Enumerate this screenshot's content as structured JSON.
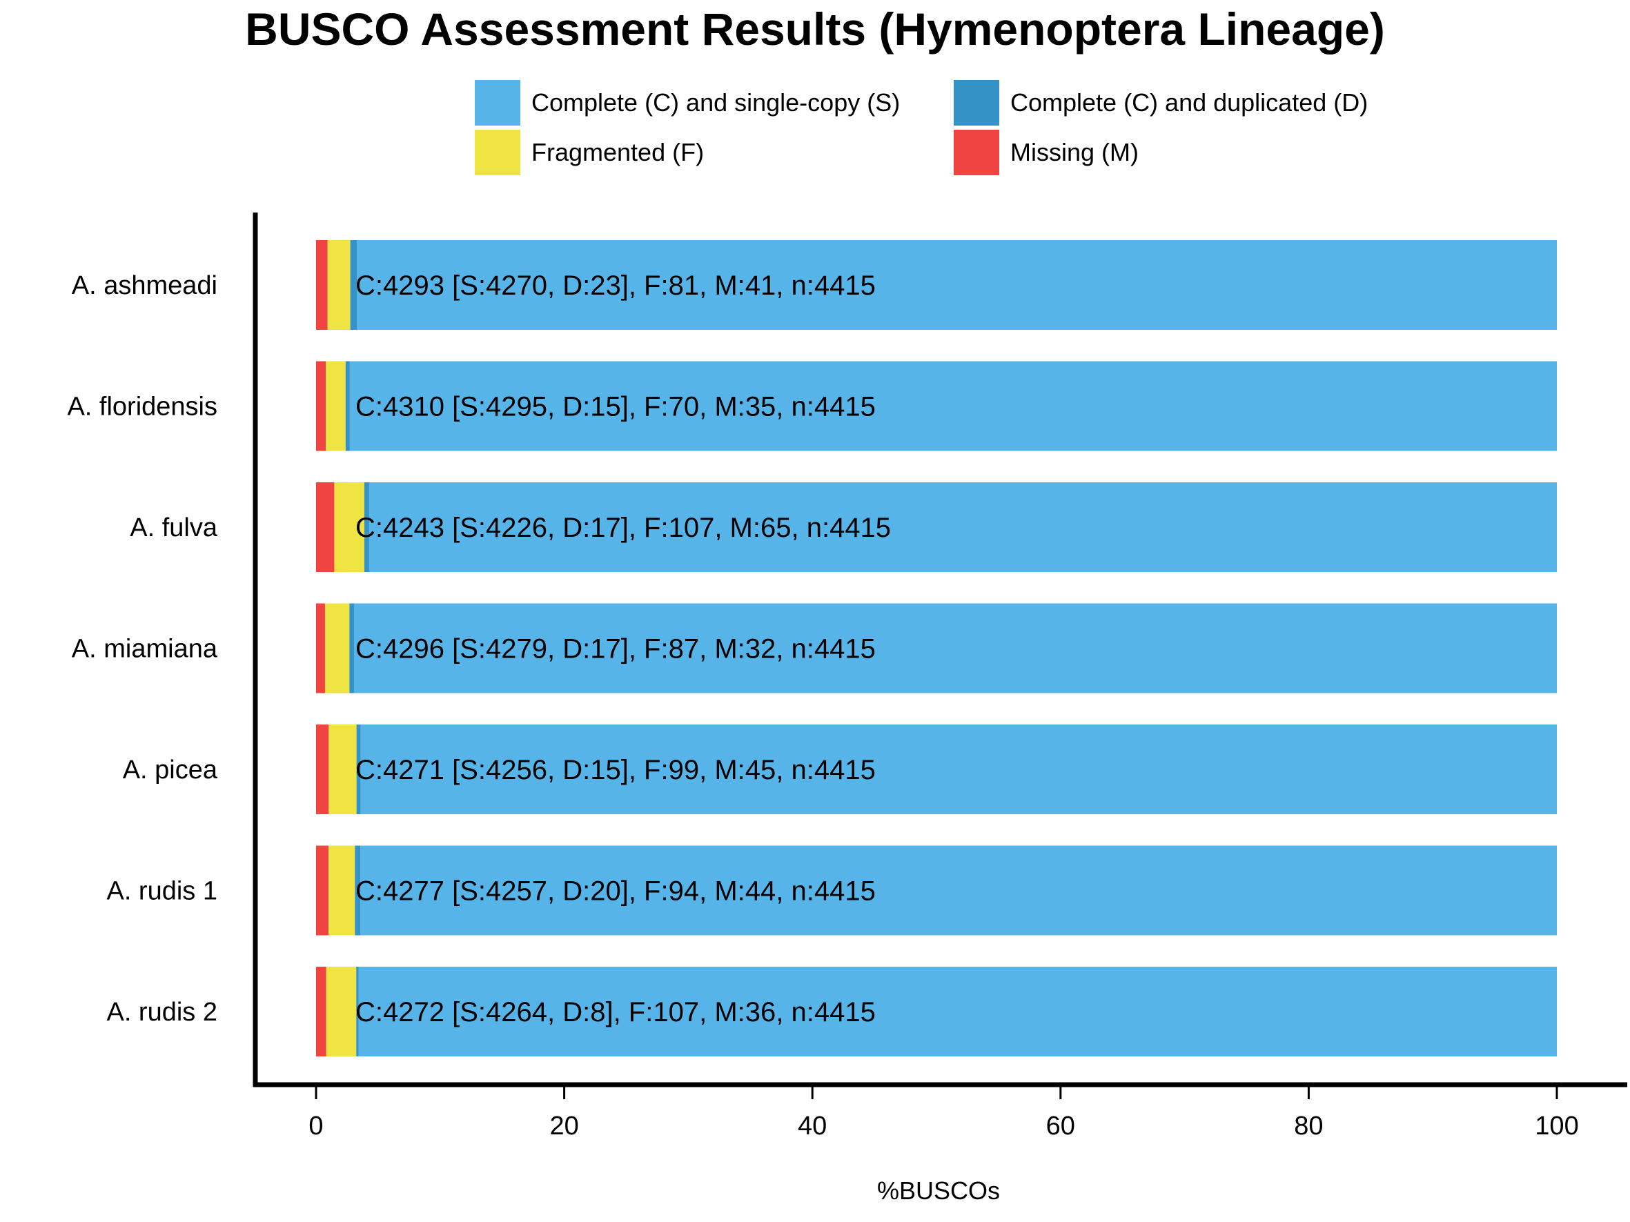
{
  "chart_data": {
    "type": "bar",
    "orientation": "horizontal",
    "stacked": true,
    "title": "BUSCO Assessment Results (Hymenoptera Lineage)",
    "xlabel": "%BUSCOs",
    "ylabel": "",
    "xlim": [
      0,
      100
    ],
    "xticks": [
      0,
      20,
      40,
      60,
      80,
      100
    ],
    "legend_position": "top",
    "categories": [
      "A. ashmeadi",
      "A. floridensis",
      "A. fulva",
      "A. miamiana",
      "A. picea",
      "A. rudis 1",
      "A. rudis 2"
    ],
    "series": [
      {
        "name": "Missing (M)",
        "color": "#f04442",
        "values": [
          0.93,
          0.79,
          1.47,
          0.72,
          1.02,
          1.0,
          0.82
        ]
      },
      {
        "name": "Fragmented (F)",
        "color": "#f0e442",
        "values": [
          1.83,
          1.59,
          2.42,
          1.97,
          2.24,
          2.13,
          2.42
        ]
      },
      {
        "name": "Complete (C) and duplicated (D)",
        "color": "#3492c7",
        "values": [
          0.52,
          0.34,
          0.39,
          0.39,
          0.34,
          0.45,
          0.18
        ]
      },
      {
        "name": "Complete (C) and single-copy (S)",
        "color": "#56b4e9",
        "values": [
          96.72,
          97.28,
          95.72,
          96.92,
          96.4,
          96.42,
          96.58
        ]
      }
    ],
    "legend_order": [
      "Complete (C) and single-copy (S)",
      "Complete (C) and duplicated (D)",
      "Fragmented (F)",
      "Missing (M)"
    ],
    "bar_labels": [
      "C:4293 [S:4270, D:23], F:81, M:41, n:4415",
      "C:4310 [S:4295, D:15], F:70, M:35, n:4415",
      "C:4243 [S:4226, D:17], F:107, M:65, n:4415",
      "C:4296 [S:4279, D:17], F:87, M:32, n:4415",
      "C:4271 [S:4256, D:15], F:99, M:45, n:4415",
      "C:4277 [S:4257, D:20], F:94, M:44, n:4415",
      "C:4272 [S:4264, D:8], F:107, M:36, n:4415"
    ]
  }
}
